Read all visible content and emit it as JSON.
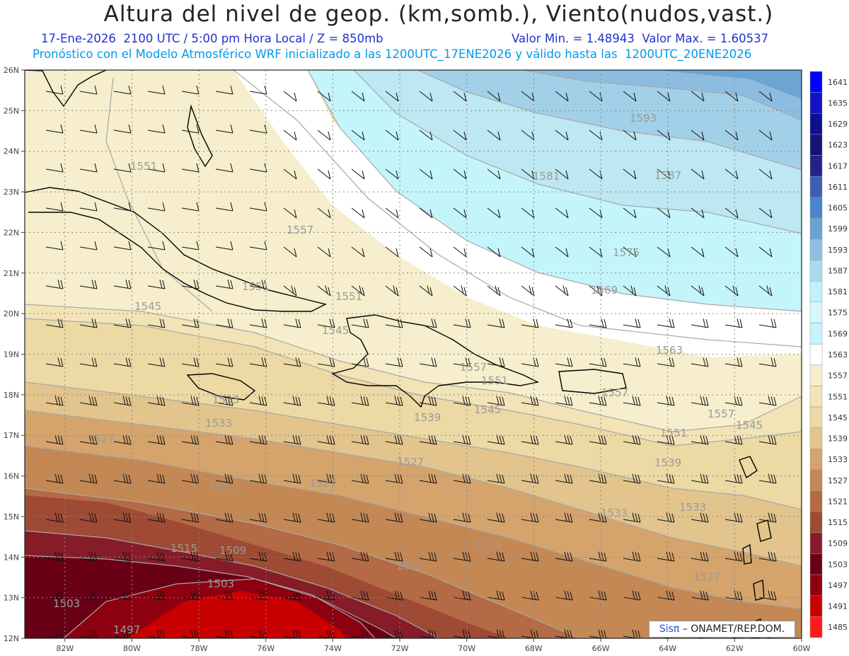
{
  "header": {
    "title": "Altura del nivel de geop. (km,somb.), Viento(nudos,vast.)",
    "subtitle_time": "17-Ene-2026  2100 UTC / 5:00 pm Hora Local / Z = 850mb",
    "subtitle_minmax": "Valor Min. = 1.48943  Valor Max. = 1.60537",
    "subtitle_model": "Pronóstico con el Modelo Atmosférico WRF inicializado a las 1200UTC_17ENE2026 y válido hasta las  1200UTC_20ENE2026"
  },
  "map": {
    "lat_labels": [
      "26N",
      "25N",
      "24N",
      "23N",
      "22N",
      "21N",
      "20N",
      "19N",
      "18N",
      "17N",
      "16N",
      "15N",
      "14N",
      "13N",
      "12N"
    ],
    "lon_labels": [
      "82W",
      "80W",
      "78W",
      "76W",
      "74W",
      "72W",
      "70W",
      "68W",
      "66W",
      "64W",
      "62W",
      "60W"
    ],
    "lat_range": [
      12,
      26
    ],
    "lon_range": [
      -83.2,
      -60
    ],
    "contour_labels": [
      "1497",
      "1503",
      "1503",
      "1509",
      "1515",
      "1515",
      "1521",
      "1521",
      "1527",
      "1527",
      "1527",
      "1527",
      "1533",
      "1533",
      "1533",
      "1533",
      "1539",
      "1539",
      "1545",
      "1545",
      "1545",
      "1545",
      "1551",
      "1551",
      "1551",
      "1551",
      "1551",
      "1557",
      "1557",
      "1557",
      "1557",
      "1563",
      "1569",
      "1575",
      "1581",
      "1587",
      "1593"
    ]
  },
  "colorbar": {
    "levels": [
      "1641",
      "1635",
      "1629",
      "1623",
      "1617",
      "1611",
      "1605",
      "1599",
      "1593",
      "1587",
      "1581",
      "1575",
      "1569",
      "1563",
      "1557",
      "1551",
      "1545",
      "1539",
      "1533",
      "1527",
      "1521",
      "1515",
      "1509",
      "1503",
      "1497",
      "1491",
      "1485"
    ],
    "colors": [
      "#0000ff",
      "#1212c8",
      "#0e0e90",
      "#141478",
      "#222288",
      "#3a5fb4",
      "#4a86c8",
      "#6aa2d2",
      "#8ec0e2",
      "#a8dcee",
      "#bff3fb",
      "#d7f7fd",
      "#c4f5fb",
      "#ffffff",
      "#f6eecc",
      "#f2e4b6",
      "#ecd9a4",
      "#e2c48c",
      "#d4a46c",
      "#c48854",
      "#b46a44",
      "#9e4a34",
      "#861c28",
      "#6a0016",
      "#8c0010",
      "#c80000",
      "#ff1a1a"
    ]
  },
  "credit": {
    "sis": "Sisπ",
    "org": "– ONAMET/REP.DOM."
  },
  "palette": {
    "title": "#222222",
    "subtitle": "#2233cc",
    "subtitle2": "#0099ee"
  }
}
